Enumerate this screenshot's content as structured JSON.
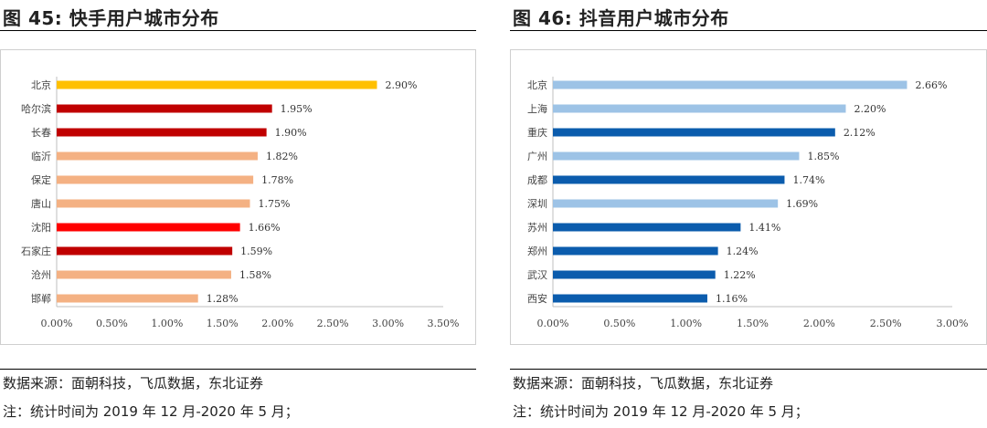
{
  "left_figure": {
    "title": "图  45:  快手用户城市分布",
    "source": "数据来源：面朝科技，飞瓜数据，东北证券",
    "note": "注：统计时间为 2019 年 12 月-2020 年 5 月；"
  },
  "right_figure": {
    "title": "图  46:  抖音用户城市分布",
    "source": "数据来源：面朝科技，飞瓜数据，东北证券",
    "note": "注：统计时间为 2019 年 12 月-2020 年 5 月；"
  },
  "chart_data": [
    {
      "type": "bar",
      "orientation": "horizontal",
      "categories": [
        "北京",
        "哈尔滨",
        "长春",
        "临沂",
        "保定",
        "唐山",
        "沈阳",
        "石家庄",
        "沧州",
        "邯郸"
      ],
      "values": [
        2.9,
        1.95,
        1.9,
        1.82,
        1.78,
        1.75,
        1.66,
        1.59,
        1.58,
        1.28
      ],
      "value_labels": [
        "2.90%",
        "1.95%",
        "1.90%",
        "1.82%",
        "1.78%",
        "1.75%",
        "1.66%",
        "1.59%",
        "1.58%",
        "1.28%"
      ],
      "colors": [
        "#FFC000",
        "#C00000",
        "#C00000",
        "#F4B183",
        "#F4B183",
        "#F4B183",
        "#FF0000",
        "#C00000",
        "#F4B183",
        "#F4B183"
      ],
      "xlim": [
        0,
        3.5
      ],
      "x_ticks": [
        "0.00%",
        "0.50%",
        "1.00%",
        "1.50%",
        "2.00%",
        "2.50%",
        "3.00%",
        "3.50%"
      ],
      "grid": false
    },
    {
      "type": "bar",
      "orientation": "horizontal",
      "categories": [
        "北京",
        "上海",
        "重庆",
        "广州",
        "成都",
        "深圳",
        "苏州",
        "郑州",
        "武汉",
        "西安"
      ],
      "values": [
        2.66,
        2.2,
        2.12,
        1.85,
        1.74,
        1.69,
        1.41,
        1.24,
        1.22,
        1.16
      ],
      "value_labels": [
        "2.66%",
        "2.20%",
        "2.12%",
        "1.85%",
        "1.74%",
        "1.69%",
        "1.41%",
        "1.24%",
        "1.22%",
        "1.16%"
      ],
      "colors": [
        "#9DC3E6",
        "#9DC3E6",
        "#0B5CAD",
        "#9DC3E6",
        "#0B5CAD",
        "#9DC3E6",
        "#0B5CAD",
        "#0B5CAD",
        "#0B5CAD",
        "#0B5CAD"
      ],
      "xlim": [
        0,
        3.0
      ],
      "x_ticks": [
        "0.00%",
        "0.50%",
        "1.00%",
        "1.50%",
        "2.00%",
        "2.50%",
        "3.00%"
      ],
      "grid": false
    }
  ]
}
